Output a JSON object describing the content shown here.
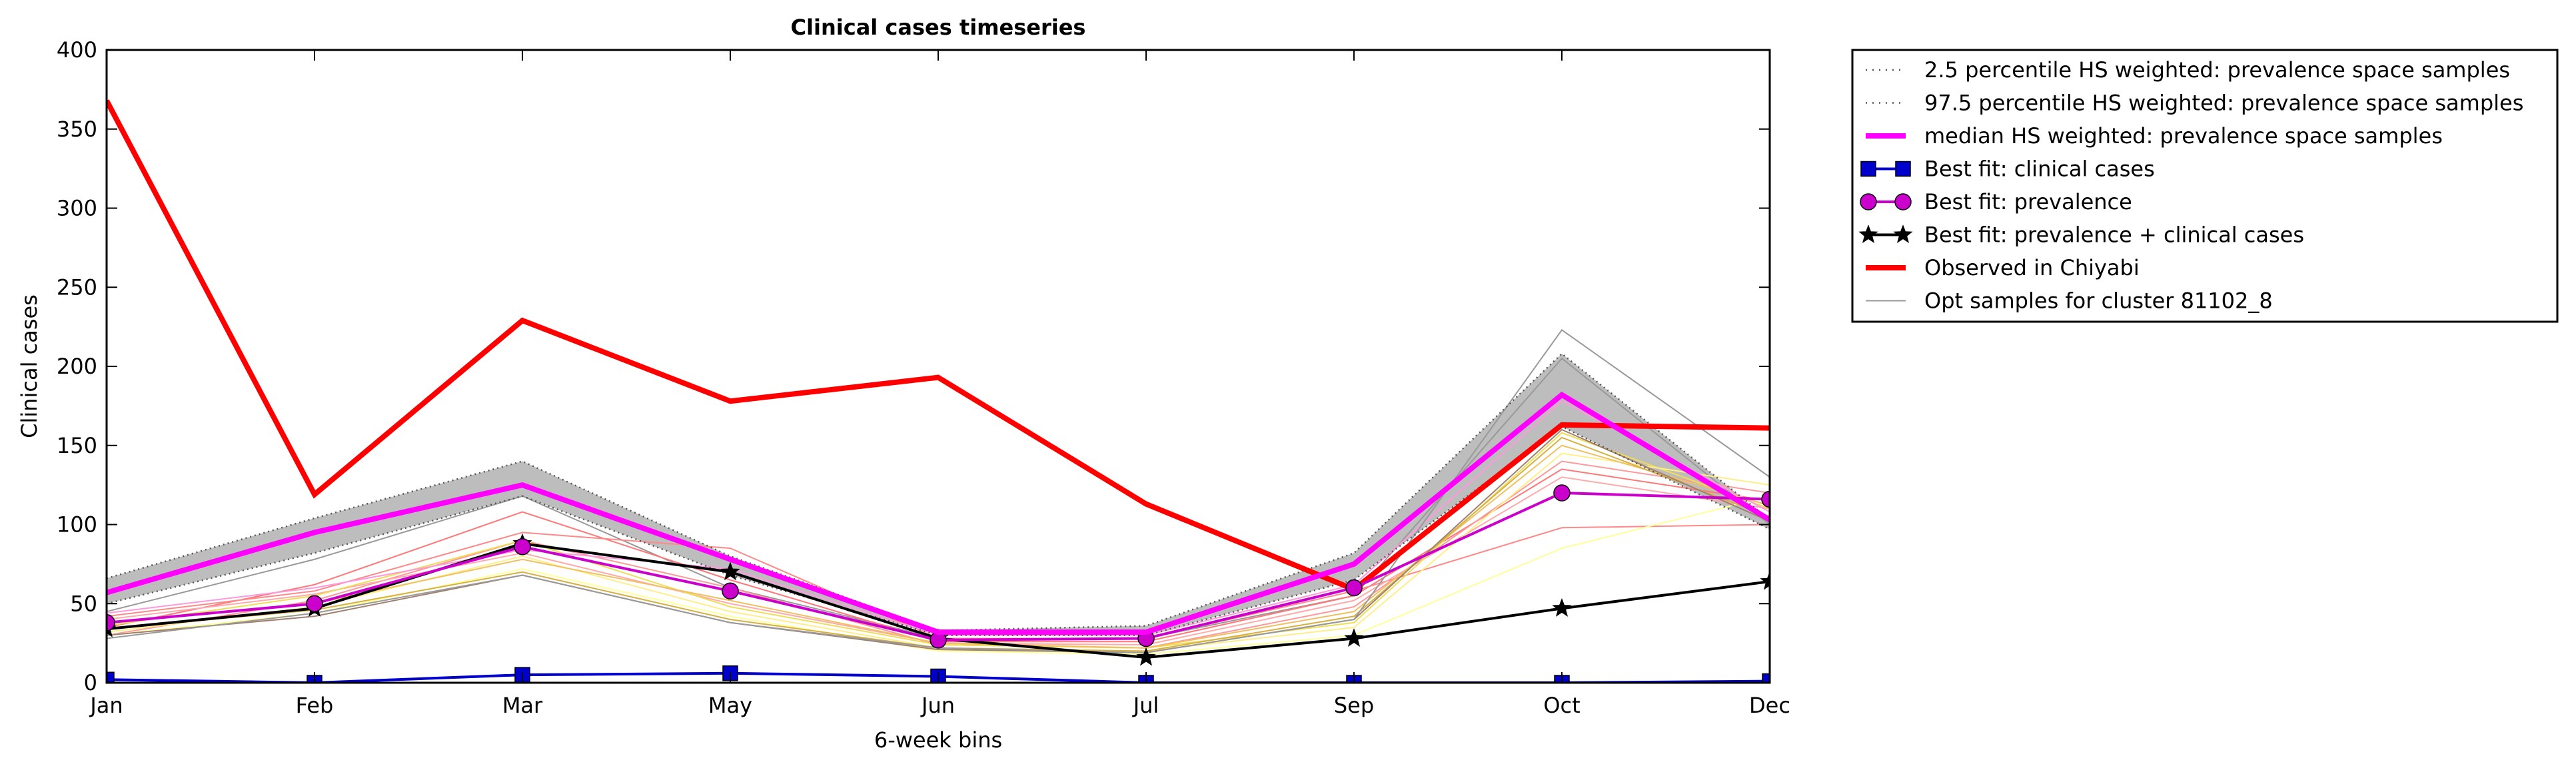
{
  "chart_data": {
    "type": "line",
    "title": "Clinical cases timeseries",
    "xlabel": "6-week bins",
    "ylabel": "Clinical cases",
    "categories": [
      "Jan",
      "Feb",
      "Mar",
      "May",
      "Jun",
      "Jul",
      "Sep",
      "Oct",
      "Dec"
    ],
    "ylim": [
      0,
      400
    ],
    "yticks": [
      0,
      50,
      100,
      150,
      200,
      250,
      300,
      350,
      400
    ],
    "grid": false,
    "legend_position": "outside-right-top",
    "band": {
      "lower": [
        50,
        82,
        118,
        68,
        30,
        30,
        65,
        162,
        97
      ],
      "upper": [
        66,
        104,
        140,
        80,
        33,
        36,
        82,
        208,
        103
      ],
      "fill_color": "#bdbdbd"
    },
    "series": [
      {
        "name": "2.5 percentile HS weighted: prevalence space samples",
        "style": "dotted",
        "color": "#555555",
        "values": [
          50,
          82,
          118,
          68,
          30,
          30,
          65,
          162,
          97
        ]
      },
      {
        "name": "97.5 percentile HS weighted: prevalence space samples",
        "style": "dotted",
        "color": "#555555",
        "values": [
          66,
          104,
          140,
          80,
          33,
          36,
          82,
          208,
          103
        ]
      },
      {
        "name": "median HS weighted: prevalence space samples",
        "style": "solid",
        "color": "#ff00ff",
        "values": [
          57,
          95,
          125,
          78,
          32,
          32,
          75,
          182,
          103
        ]
      },
      {
        "name": "Best fit: clinical cases",
        "style": "square-marker",
        "color": "#0000cc",
        "values": [
          2,
          0,
          5,
          6,
          4,
          0,
          0,
          0,
          1
        ]
      },
      {
        "name": "Best fit: prevalence",
        "style": "circle-marker",
        "color": "#cc00cc",
        "values": [
          38,
          50,
          86,
          58,
          27,
          28,
          60,
          120,
          116
        ]
      },
      {
        "name": "Best fit: prevalence + clinical cases",
        "style": "star-marker",
        "color": "#000000",
        "values": [
          34,
          47,
          88,
          70,
          28,
          16,
          28,
          47,
          64
        ]
      },
      {
        "name": "Observed in Chiyabi",
        "style": "solid",
        "color": "#ff0000",
        "values": [
          368,
          119,
          229,
          178,
          193,
          113,
          59,
          163,
          161
        ]
      },
      {
        "name": "Opt samples for cluster 81102_8",
        "style": "thin",
        "color": "#999999",
        "values": [
          28,
          44,
          68,
          38,
          22,
          19,
          40,
          223,
          130
        ]
      }
    ],
    "samples": [
      {
        "color": "#999999",
        "values": [
          45,
          78,
          118,
          60,
          28,
          28,
          55,
          205,
          100
        ]
      },
      {
        "color": "#ff7777",
        "values": [
          35,
          62,
          108,
          65,
          26,
          26,
          55,
          135,
          115
        ]
      },
      {
        "color": "#ff8888",
        "values": [
          42,
          58,
          95,
          85,
          28,
          28,
          58,
          98,
          100
        ]
      },
      {
        "color": "#ff9999",
        "values": [
          30,
          52,
          90,
          60,
          24,
          22,
          48,
          140,
          120
        ]
      },
      {
        "color": "#ffaaaa",
        "values": [
          40,
          56,
          82,
          50,
          25,
          24,
          52,
          130,
          110
        ]
      },
      {
        "color": "#eedd55",
        "values": [
          36,
          55,
          90,
          48,
          24,
          22,
          38,
          158,
          110
        ]
      },
      {
        "color": "#ffee88",
        "values": [
          32,
          48,
          80,
          45,
          22,
          20,
          35,
          145,
          125
        ]
      },
      {
        "color": "#ffff99",
        "values": [
          30,
          44,
          72,
          42,
          20,
          18,
          30,
          85,
          118
        ]
      },
      {
        "color": "#f0c060",
        "values": [
          38,
          50,
          78,
          52,
          25,
          22,
          45,
          150,
          112
        ]
      },
      {
        "color": "#d8b040",
        "values": [
          34,
          46,
          70,
          40,
          22,
          20,
          42,
          155,
          105
        ]
      },
      {
        "color": "#a08070",
        "values": [
          30,
          42,
          68,
          38,
          21,
          19,
          40,
          160,
          102
        ]
      },
      {
        "color": "#ff99dd",
        "values": [
          44,
          60,
          84,
          72,
          30,
          30,
          62,
          178,
          108
        ]
      }
    ]
  }
}
